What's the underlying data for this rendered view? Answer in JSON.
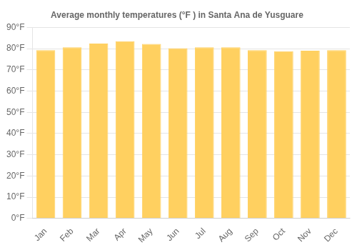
{
  "chart_data": {
    "type": "bar",
    "title": "Average monthly temperatures (°F ) in Santa Ana de Yusguare",
    "categories": [
      "Jan",
      "Feb",
      "Mar",
      "Apr",
      "May",
      "Jun",
      "Jul",
      "Aug",
      "Sep",
      "Oct",
      "Nov",
      "Dec"
    ],
    "values": [
      79.3,
      80.6,
      82.4,
      83.5,
      82.2,
      80.2,
      80.6,
      80.6,
      79.3,
      78.8,
      79.0,
      79.3
    ],
    "color": "#FFD060",
    "ylim": [
      0,
      90
    ],
    "yticks": [
      {
        "value": 0,
        "label": "0°F"
      },
      {
        "value": 10,
        "label": "10°F"
      },
      {
        "value": 20,
        "label": "20°F"
      },
      {
        "value": 30,
        "label": "30°F"
      },
      {
        "value": 40,
        "label": "40°F"
      },
      {
        "value": 50,
        "label": "50°F"
      },
      {
        "value": 60,
        "label": "60°F"
      },
      {
        "value": 70,
        "label": "70°F"
      },
      {
        "value": 80,
        "label": "80°F"
      },
      {
        "value": 90,
        "label": "90°F"
      }
    ],
    "grid": true
  }
}
